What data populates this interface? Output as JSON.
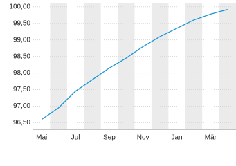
{
  "chart_data": {
    "type": "line",
    "categories": [
      "Mai",
      null,
      "Jul",
      null,
      "Sep",
      null,
      "Nov",
      null,
      "Jan",
      null,
      "Mär",
      null
    ],
    "series": [
      {
        "color": "#1a96d4",
        "values": [
          96.6,
          96.95,
          97.45,
          97.8,
          98.15,
          98.45,
          98.8,
          99.1,
          99.35,
          99.6,
          99.78,
          99.92
        ]
      }
    ],
    "ylim": [
      96.3,
      100.1
    ],
    "yticks": [
      {
        "value": 96.5,
        "label": "96,50"
      },
      {
        "value": 97,
        "label": "97,00"
      },
      {
        "value": 97.5,
        "label": "97,50"
      },
      {
        "value": 98,
        "label": "98,00"
      },
      {
        "value": 98.5,
        "label": "98,50"
      },
      {
        "value": 99,
        "label": "99,00"
      },
      {
        "value": 99.5,
        "label": "99,50"
      },
      {
        "value": 100,
        "label": "100,00"
      }
    ],
    "band_color": "#ebebeb",
    "grid": true
  }
}
